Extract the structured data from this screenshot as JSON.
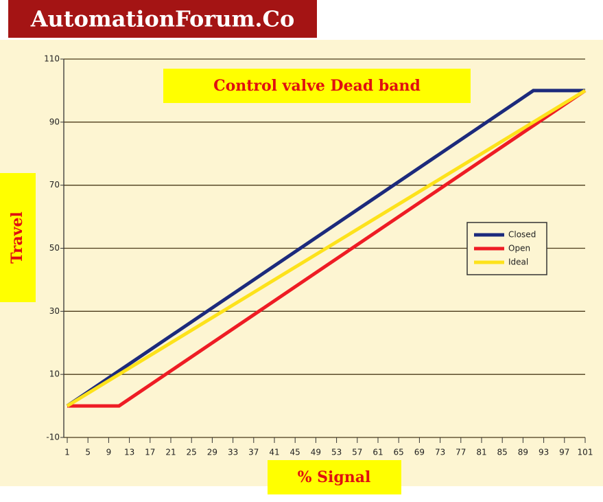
{
  "header": {
    "title": "AutomationForum.Co"
  },
  "chart_data": {
    "type": "line",
    "title": "Control valve Dead band",
    "xlabel": "% Signal",
    "ylabel": "Travel",
    "x": [
      1,
      11,
      91,
      101
    ],
    "series": [
      {
        "name": "Closed",
        "color": "#1c2a7c",
        "values": [
          0,
          11.1,
          100,
          100
        ]
      },
      {
        "name": "Open",
        "color": "#ee1c24",
        "values": [
          0,
          0,
          88.9,
          100
        ]
      },
      {
        "name": "Ideal",
        "color": "#fde21b",
        "values": [
          0,
          10,
          90,
          100
        ]
      }
    ],
    "xlim": [
      1,
      101
    ],
    "xticks": [
      1,
      5,
      9,
      13,
      17,
      21,
      25,
      29,
      33,
      37,
      41,
      45,
      49,
      53,
      57,
      61,
      65,
      69,
      73,
      77,
      81,
      85,
      89,
      93,
      97,
      101
    ],
    "ylim": [
      -10,
      110
    ],
    "yticks": [
      -10,
      10,
      30,
      50,
      70,
      90,
      110
    ],
    "grid": true,
    "legend": "right"
  }
}
